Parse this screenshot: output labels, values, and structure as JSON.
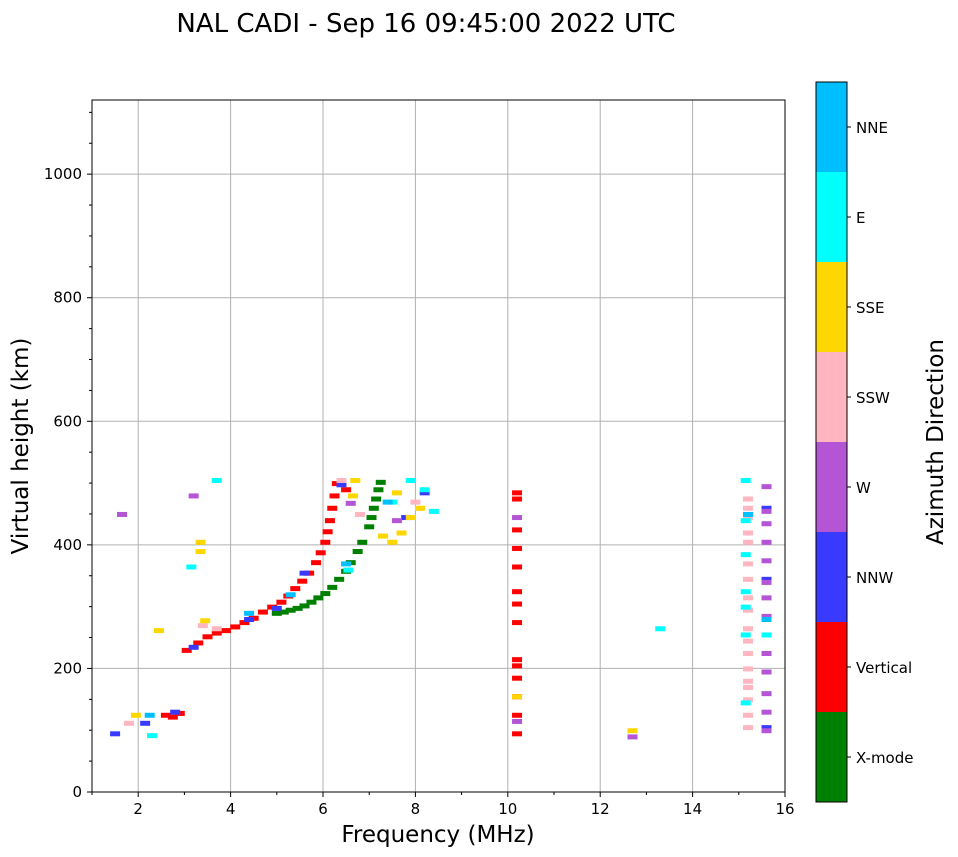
{
  "chart_data": {
    "type": "scatter",
    "title": "NAL CADI - Sep 16 09:45:00 2022 UTC",
    "xlabel": "Frequency (MHz)",
    "ylabel": "Virtual height (km)",
    "xlim": [
      1,
      16
    ],
    "ylim": [
      0,
      1120
    ],
    "xticks": [
      2,
      4,
      6,
      8,
      10,
      12,
      14,
      16
    ],
    "yticks": [
      0,
      200,
      400,
      600,
      800,
      1000
    ],
    "grid": true,
    "colorbar": {
      "label": "Azimuth Direction",
      "categories": [
        {
          "name": "X-mode",
          "color": "#008000"
        },
        {
          "name": "Vertical",
          "color": "#ff0000"
        },
        {
          "name": "NNW",
          "color": "#3a3aff"
        },
        {
          "name": "W",
          "color": "#b455d6"
        },
        {
          "name": "SSW",
          "color": "#ffb6c1"
        },
        {
          "name": "SSE",
          "color": "#ffd700"
        },
        {
          "name": "E",
          "color": "#00ffff"
        },
        {
          "name": "NNE",
          "color": "#00bfff"
        }
      ]
    },
    "series": [
      {
        "name": "X-mode",
        "points": [
          [
            5.0,
            290
          ],
          [
            5.15,
            292
          ],
          [
            5.3,
            295
          ],
          [
            5.45,
            298
          ],
          [
            5.6,
            302
          ],
          [
            5.75,
            308
          ],
          [
            5.9,
            315
          ],
          [
            6.05,
            322
          ],
          [
            6.2,
            332
          ],
          [
            6.35,
            345
          ],
          [
            6.5,
            358
          ],
          [
            6.6,
            372
          ],
          [
            6.75,
            390
          ],
          [
            6.85,
            405
          ],
          [
            7.0,
            430
          ],
          [
            7.05,
            445
          ],
          [
            7.1,
            460
          ],
          [
            7.15,
            475
          ],
          [
            7.2,
            490
          ],
          [
            7.25,
            502
          ]
        ]
      },
      {
        "name": "Vertical",
        "points": [
          [
            2.6,
            125
          ],
          [
            2.75,
            122
          ],
          [
            2.9,
            128
          ],
          [
            3.05,
            230
          ],
          [
            3.3,
            242
          ],
          [
            3.5,
            252
          ],
          [
            3.7,
            258
          ],
          [
            3.9,
            262
          ],
          [
            4.1,
            268
          ],
          [
            4.3,
            275
          ],
          [
            4.5,
            282
          ],
          [
            4.7,
            292
          ],
          [
            4.9,
            300
          ],
          [
            5.1,
            308
          ],
          [
            5.25,
            318
          ],
          [
            5.4,
            330
          ],
          [
            5.55,
            342
          ],
          [
            5.7,
            355
          ],
          [
            5.85,
            372
          ],
          [
            5.95,
            388
          ],
          [
            6.05,
            405
          ],
          [
            6.1,
            422
          ],
          [
            6.15,
            440
          ],
          [
            6.2,
            460
          ],
          [
            6.25,
            480
          ],
          [
            6.3,
            500
          ],
          [
            6.5,
            490
          ],
          [
            10.2,
            95
          ],
          [
            10.2,
            125
          ],
          [
            10.2,
            155
          ],
          [
            10.2,
            185
          ],
          [
            10.2,
            205
          ],
          [
            10.2,
            215
          ],
          [
            10.2,
            275
          ],
          [
            10.2,
            305
          ],
          [
            10.2,
            325
          ],
          [
            10.2,
            365
          ],
          [
            10.2,
            395
          ],
          [
            10.2,
            425
          ],
          [
            10.2,
            475
          ],
          [
            10.2,
            485
          ]
        ]
      },
      {
        "name": "NNW",
        "points": [
          [
            1.5,
            95
          ],
          [
            2.15,
            112
          ],
          [
            2.8,
            130
          ],
          [
            3.2,
            235
          ],
          [
            4.4,
            280
          ],
          [
            5.0,
            298
          ],
          [
            5.6,
            355
          ],
          [
            6.4,
            498
          ],
          [
            7.8,
            445
          ],
          [
            8.2,
            485
          ],
          [
            15.6,
            195
          ],
          [
            15.6,
            105
          ],
          [
            15.6,
            345
          ],
          [
            15.6,
            460
          ]
        ]
      },
      {
        "name": "W",
        "points": [
          [
            1.65,
            450
          ],
          [
            3.2,
            480
          ],
          [
            6.6,
            468
          ],
          [
            7.6,
            440
          ],
          [
            10.2,
            115
          ],
          [
            10.2,
            445
          ],
          [
            12.7,
            90
          ],
          [
            15.6,
            100
          ],
          [
            15.6,
            130
          ],
          [
            15.6,
            160
          ],
          [
            15.6,
            195
          ],
          [
            15.6,
            225
          ],
          [
            15.6,
            285
          ],
          [
            15.6,
            315
          ],
          [
            15.6,
            340
          ],
          [
            15.6,
            375
          ],
          [
            15.6,
            405
          ],
          [
            15.6,
            435
          ],
          [
            15.6,
            455
          ],
          [
            15.6,
            495
          ]
        ]
      },
      {
        "name": "SSW",
        "points": [
          [
            1.8,
            112
          ],
          [
            3.4,
            270
          ],
          [
            3.7,
            265
          ],
          [
            6.4,
            505
          ],
          [
            6.8,
            450
          ],
          [
            8.0,
            470
          ],
          [
            15.2,
            105
          ],
          [
            15.2,
            125
          ],
          [
            15.2,
            150
          ],
          [
            15.2,
            170
          ],
          [
            15.2,
            180
          ],
          [
            15.2,
            200
          ],
          [
            15.2,
            225
          ],
          [
            15.2,
            245
          ],
          [
            15.2,
            265
          ],
          [
            15.2,
            295
          ],
          [
            15.2,
            315
          ],
          [
            15.2,
            345
          ],
          [
            15.2,
            370
          ],
          [
            15.2,
            405
          ],
          [
            15.2,
            420
          ],
          [
            15.2,
            445
          ],
          [
            15.2,
            460
          ],
          [
            15.2,
            475
          ]
        ]
      },
      {
        "name": "SSE",
        "points": [
          [
            1.95,
            125
          ],
          [
            2.45,
            262
          ],
          [
            3.35,
            390
          ],
          [
            3.35,
            405
          ],
          [
            3.45,
            278
          ],
          [
            6.65,
            480
          ],
          [
            6.7,
            505
          ],
          [
            7.3,
            415
          ],
          [
            7.5,
            405
          ],
          [
            7.6,
            485
          ],
          [
            7.7,
            420
          ],
          [
            7.9,
            445
          ],
          [
            8.1,
            460
          ],
          [
            10.2,
            155
          ],
          [
            12.7,
            100
          ]
        ]
      },
      {
        "name": "E",
        "points": [
          [
            2.3,
            92
          ],
          [
            3.15,
            365
          ],
          [
            3.7,
            505
          ],
          [
            6.55,
            360
          ],
          [
            7.5,
            470
          ],
          [
            7.9,
            505
          ],
          [
            8.2,
            490
          ],
          [
            8.4,
            455
          ],
          [
            13.3,
            265
          ],
          [
            15.15,
            145
          ],
          [
            15.15,
            255
          ],
          [
            15.15,
            300
          ],
          [
            15.15,
            325
          ],
          [
            15.15,
            385
          ],
          [
            15.15,
            440
          ],
          [
            15.15,
            505
          ],
          [
            15.6,
            255
          ]
        ]
      },
      {
        "name": "NNE",
        "points": [
          [
            2.25,
            125
          ],
          [
            4.4,
            290
          ],
          [
            5.3,
            320
          ],
          [
            6.5,
            370
          ],
          [
            7.4,
            470
          ],
          [
            15.2,
            450
          ],
          [
            15.6,
            280
          ]
        ]
      }
    ]
  }
}
